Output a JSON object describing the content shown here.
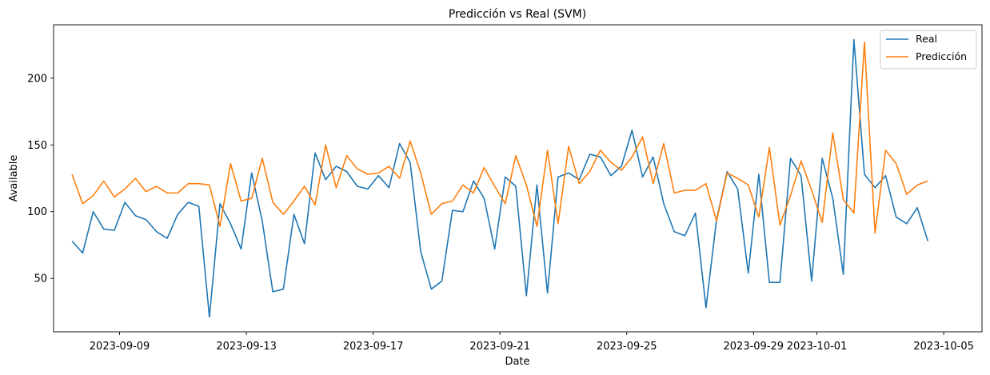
{
  "chart_data": {
    "type": "line",
    "title": "Predicción vs Real (SVM)",
    "xlabel": "Date",
    "ylabel": "Available",
    "x_start": "2023-09-07 12:00",
    "x_step_hours": 8,
    "xlim": [
      "2023-09-06 22:00",
      "2023-10-06 05:00"
    ],
    "ylim": [
      10,
      240
    ],
    "yticks": [
      50,
      100,
      150,
      200
    ],
    "xticks": [
      "2023-09-09",
      "2023-09-13",
      "2023-09-17",
      "2023-09-21",
      "2023-09-25",
      "2023-09-29",
      "2023-10-01",
      "2023-10-05"
    ],
    "grid": false,
    "legend_position": "top-right",
    "series": [
      {
        "name": "Real",
        "color": "#1f77b4",
        "values": [
          78,
          69,
          100,
          87,
          86,
          107,
          97,
          94,
          85,
          80,
          98,
          107,
          104,
          21,
          106,
          91,
          72,
          129,
          93,
          40,
          42,
          98,
          76,
          144,
          124,
          134,
          130,
          119,
          117,
          127,
          118,
          151,
          137,
          70,
          42,
          48,
          101,
          100,
          123,
          110,
          72,
          126,
          119,
          37,
          120,
          39,
          126,
          129,
          124,
          143,
          141,
          127,
          134,
          161,
          126,
          141,
          106,
          85,
          82,
          99,
          28,
          94,
          130,
          117,
          54,
          128,
          47,
          47,
          140,
          127,
          48,
          140,
          110,
          53,
          229,
          128,
          118,
          127,
          96,
          91,
          103,
          78
        ]
      },
      {
        "name": "Predicción",
        "color": "#ff7f0e",
        "values": [
          128,
          106,
          112,
          123,
          111,
          117,
          125,
          115,
          119,
          114,
          114,
          121,
          121,
          120,
          89,
          136,
          108,
          110,
          140,
          107,
          98,
          108,
          119,
          105,
          150,
          118,
          142,
          132,
          128,
          129,
          134,
          125,
          153,
          129,
          98,
          106,
          108,
          120,
          114,
          133,
          119,
          106,
          142,
          120,
          89,
          146,
          91,
          149,
          121,
          130,
          146,
          137,
          131,
          141,
          156,
          121,
          151,
          114,
          116,
          116,
          121,
          93,
          129,
          125,
          120,
          96,
          148,
          90,
          112,
          138,
          116,
          92,
          159,
          109,
          99,
          227,
          84,
          146,
          136,
          113,
          120,
          123
        ]
      }
    ]
  }
}
